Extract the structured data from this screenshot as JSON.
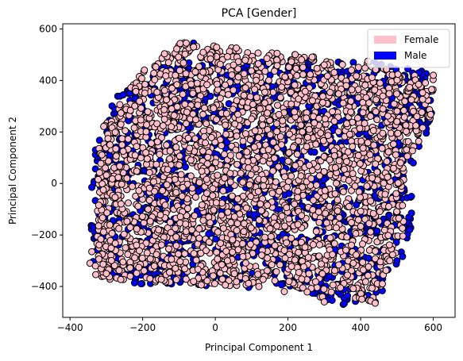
{
  "chart_data": {
    "type": "scatter",
    "title": "PCA [Gender]",
    "xlabel": "Principal Component 1",
    "ylabel": "Principal Component 2",
    "xlim": [
      -420,
      660
    ],
    "ylim": [
      -520,
      620
    ],
    "xticks": [
      -400,
      -200,
      0,
      200,
      400,
      600
    ],
    "yticks": [
      -400,
      -200,
      0,
      200,
      400,
      600
    ],
    "grid": false,
    "legend_position": "top-right",
    "series": [
      {
        "name": "Female",
        "color": "#ffc0cb",
        "edgecolor": "#000000",
        "cloud_region": [
          [
            -330,
            -370
          ],
          [
            -320,
            200
          ],
          [
            -200,
            440
          ],
          [
            -100,
            550
          ],
          [
            100,
            520
          ],
          [
            300,
            490
          ],
          [
            420,
            470
          ],
          [
            520,
            430
          ],
          [
            600,
            410
          ],
          [
            600,
            260
          ],
          [
            520,
            60
          ],
          [
            520,
            -200
          ],
          [
            480,
            -330
          ],
          [
            430,
            -470
          ],
          [
            300,
            -450
          ],
          [
            200,
            -390
          ],
          [
            0,
            -400
          ],
          [
            -200,
            -380
          ]
        ],
        "points": [
          [
            -345,
            -310
          ],
          [
            -340,
            -265
          ],
          [
            -330,
            -320
          ],
          [
            -300,
            -350
          ],
          [
            -180,
            -370
          ],
          [
            -80,
            545
          ],
          [
            -60,
            530
          ],
          [
            170,
            505
          ],
          [
            220,
            500
          ],
          [
            300,
            460
          ],
          [
            375,
            440
          ],
          [
            420,
            475
          ],
          [
            540,
            325
          ],
          [
            545,
            280
          ],
          [
            555,
            260
          ],
          [
            600,
            420
          ],
          [
            295,
            -440
          ],
          [
            300,
            -460
          ],
          [
            440,
            -465
          ],
          [
            190,
            -420
          ],
          [
            -290,
            150
          ],
          [
            -260,
            230
          ],
          [
            -110,
            420
          ],
          [
            50,
            460
          ],
          [
            500,
            240
          ],
          [
            510,
            80
          ],
          [
            460,
            -390
          ],
          [
            380,
            -310
          ],
          [
            120,
            -400
          ],
          [
            -60,
            -380
          ]
        ]
      },
      {
        "name": "Male",
        "color": "#0000ff",
        "edgecolor": "#000000",
        "cloud_region": [
          [
            -350,
            -310
          ],
          [
            -330,
            130
          ],
          [
            -280,
            330
          ],
          [
            -120,
            480
          ],
          [
            60,
            470
          ],
          [
            250,
            480
          ],
          [
            450,
            470
          ],
          [
            560,
            450
          ],
          [
            610,
            430
          ],
          [
            600,
            260
          ],
          [
            550,
            80
          ],
          [
            540,
            -220
          ],
          [
            500,
            -330
          ],
          [
            440,
            -470
          ],
          [
            300,
            -470
          ],
          [
            200,
            -400
          ],
          [
            0,
            -410
          ],
          [
            -220,
            -390
          ]
        ],
        "points": [
          [
            -340,
            -15
          ],
          [
            -320,
            -120
          ],
          [
            -300,
            130
          ],
          [
            -270,
            250
          ],
          [
            -220,
            330
          ],
          [
            -170,
            400
          ],
          [
            -140,
            450
          ],
          [
            -60,
            545
          ],
          [
            380,
            470
          ],
          [
            470,
            440
          ],
          [
            520,
            420
          ],
          [
            560,
            430
          ],
          [
            600,
            420
          ],
          [
            545,
            80
          ],
          [
            540,
            -50
          ],
          [
            535,
            -180
          ],
          [
            500,
            -300
          ],
          [
            440,
            -460
          ],
          [
            400,
            -300
          ],
          [
            350,
            -310
          ],
          [
            310,
            -330
          ],
          [
            260,
            -360
          ],
          [
            300,
            460
          ],
          [
            250,
            440
          ],
          [
            -330,
            130
          ]
        ]
      }
    ]
  }
}
